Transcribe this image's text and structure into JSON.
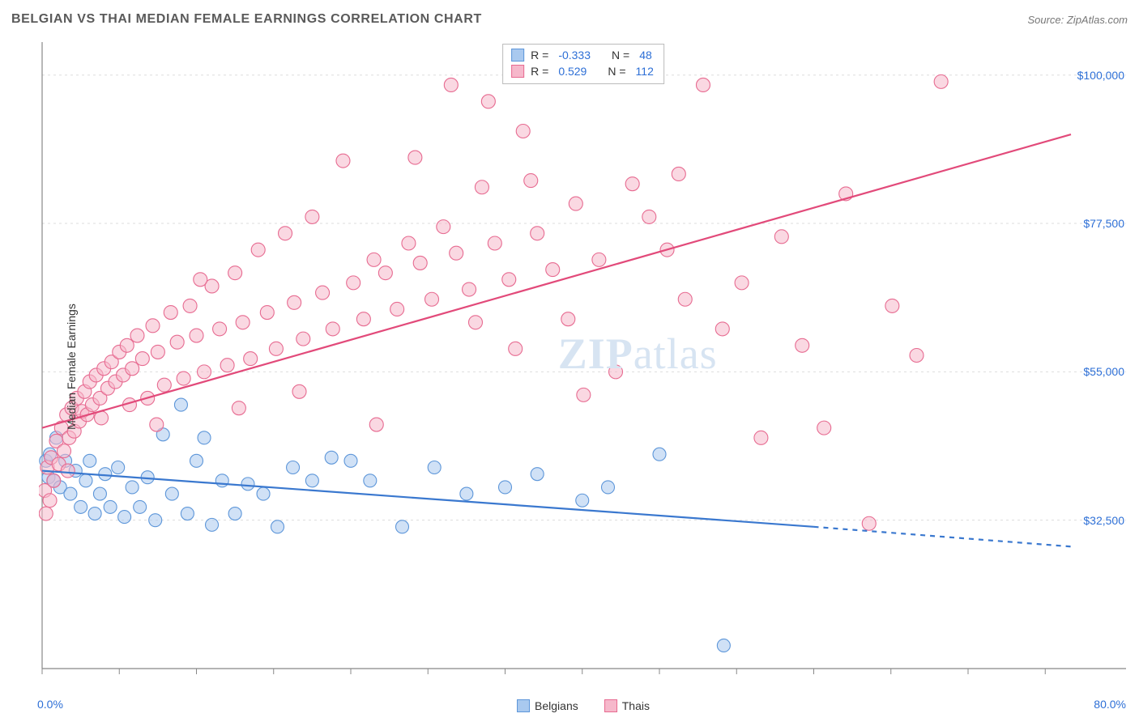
{
  "header": {
    "title": "BELGIAN VS THAI MEDIAN FEMALE EARNINGS CORRELATION CHART",
    "source": "Source: ZipAtlas.com"
  },
  "watermark": {
    "bold": "ZIP",
    "rest": "atlas"
  },
  "chart": {
    "type": "scatter",
    "ylabel": "Median Female Earnings",
    "background_color": "#ffffff",
    "grid_color": "#dddddd",
    "axis_color": "#888888",
    "xlim": [
      0,
      80
    ],
    "ylim": [
      10000,
      105000
    ],
    "x_axis": {
      "start_label": "0.0%",
      "end_label": "80.0%",
      "tick_positions": [
        0,
        6,
        12,
        18,
        24,
        30,
        36,
        42,
        48,
        54,
        60,
        66,
        72,
        78
      ]
    },
    "y_axis": {
      "ticks": [
        {
          "v": 32500,
          "label": "$32,500"
        },
        {
          "v": 55000,
          "label": "$55,000"
        },
        {
          "v": 77500,
          "label": "$77,500"
        },
        {
          "v": 100000,
          "label": "$100,000"
        }
      ]
    },
    "series": [
      {
        "id": "belgians",
        "legend_label": "Belgians",
        "marker": "circle",
        "marker_radius": 8,
        "fill_color": "#a9c9ef",
        "fill_opacity": 0.55,
        "stroke_color": "#5d96d9",
        "line_color": "#3a78cf",
        "line_width": 2.2,
        "stats": {
          "R": "-0.333",
          "N": "48"
        },
        "trend": {
          "x1": 0,
          "y1": 40000,
          "x2": 60,
          "y2": 31500,
          "solid_until_x": 60,
          "dash_to_x": 80,
          "dash_y2": 28500
        },
        "points": [
          [
            0.3,
            41500
          ],
          [
            0.5,
            39000
          ],
          [
            0.6,
            42500
          ],
          [
            0.9,
            38500
          ],
          [
            1.1,
            45000
          ],
          [
            1.4,
            37500
          ],
          [
            1.8,
            41500
          ],
          [
            2.2,
            36500
          ],
          [
            2.6,
            40000
          ],
          [
            3.0,
            34500
          ],
          [
            3.4,
            38500
          ],
          [
            3.7,
            41500
          ],
          [
            4.1,
            33500
          ],
          [
            4.5,
            36500
          ],
          [
            4.9,
            39500
          ],
          [
            5.3,
            34500
          ],
          [
            5.9,
            40500
          ],
          [
            6.4,
            33000
          ],
          [
            7.0,
            37500
          ],
          [
            7.6,
            34500
          ],
          [
            8.2,
            39000
          ],
          [
            8.8,
            32500
          ],
          [
            9.4,
            45500
          ],
          [
            10.1,
            36500
          ],
          [
            10.8,
            50000
          ],
          [
            11.3,
            33500
          ],
          [
            12.0,
            41500
          ],
          [
            12.6,
            45000
          ],
          [
            13.2,
            31800
          ],
          [
            14.0,
            38500
          ],
          [
            15.0,
            33500
          ],
          [
            16.0,
            38000
          ],
          [
            17.2,
            36500
          ],
          [
            18.3,
            31500
          ],
          [
            19.5,
            40500
          ],
          [
            21.0,
            38500
          ],
          [
            22.5,
            42000
          ],
          [
            24.0,
            41500
          ],
          [
            25.5,
            38500
          ],
          [
            28.0,
            31500
          ],
          [
            30.5,
            40500
          ],
          [
            33.0,
            36500
          ],
          [
            36.0,
            37500
          ],
          [
            38.5,
            39500
          ],
          [
            42.0,
            35500
          ],
          [
            44.0,
            37500
          ],
          [
            48.0,
            42500
          ],
          [
            53.0,
            13500
          ]
        ]
      },
      {
        "id": "thais",
        "legend_label": "Thais",
        "marker": "circle",
        "marker_radius": 8.5,
        "fill_color": "#f6b8cb",
        "fill_opacity": 0.55,
        "stroke_color": "#e76b91",
        "line_color": "#e24a7a",
        "line_width": 2.2,
        "stats": {
          "R": "0.529",
          "N": "112"
        },
        "trend": {
          "x1": 0,
          "y1": 46500,
          "x2": 80,
          "y2": 91000,
          "solid_until_x": 80
        },
        "points": [
          [
            0.2,
            37000
          ],
          [
            0.3,
            33500
          ],
          [
            0.4,
            40500
          ],
          [
            0.6,
            35500
          ],
          [
            0.7,
            42000
          ],
          [
            0.9,
            38500
          ],
          [
            1.1,
            44500
          ],
          [
            1.3,
            41000
          ],
          [
            1.5,
            46500
          ],
          [
            1.7,
            43000
          ],
          [
            1.9,
            48500
          ],
          [
            2.1,
            45000
          ],
          [
            2.3,
            49500
          ],
          [
            2.5,
            46000
          ],
          [
            2.7,
            51000
          ],
          [
            2.9,
            47500
          ],
          [
            3.1,
            49000
          ],
          [
            3.3,
            52000
          ],
          [
            3.5,
            48500
          ],
          [
            3.7,
            53500
          ],
          [
            3.9,
            50000
          ],
          [
            4.2,
            54500
          ],
          [
            4.5,
            51000
          ],
          [
            4.8,
            55500
          ],
          [
            5.1,
            52500
          ],
          [
            5.4,
            56500
          ],
          [
            5.7,
            53500
          ],
          [
            6.0,
            58000
          ],
          [
            6.3,
            54500
          ],
          [
            6.6,
            59000
          ],
          [
            7.0,
            55500
          ],
          [
            7.4,
            60500
          ],
          [
            7.8,
            57000
          ],
          [
            8.2,
            51000
          ],
          [
            8.6,
            62000
          ],
          [
            9.0,
            58000
          ],
          [
            9.5,
            53000
          ],
          [
            10.0,
            64000
          ],
          [
            10.5,
            59500
          ],
          [
            11.0,
            54000
          ],
          [
            11.5,
            65000
          ],
          [
            12.0,
            60500
          ],
          [
            12.6,
            55000
          ],
          [
            13.2,
            68000
          ],
          [
            13.8,
            61500
          ],
          [
            14.4,
            56000
          ],
          [
            15.0,
            70000
          ],
          [
            15.6,
            62500
          ],
          [
            16.2,
            57000
          ],
          [
            16.8,
            73500
          ],
          [
            17.5,
            64000
          ],
          [
            18.2,
            58500
          ],
          [
            18.9,
            76000
          ],
          [
            19.6,
            65500
          ],
          [
            20.3,
            60000
          ],
          [
            21.0,
            78500
          ],
          [
            21.8,
            67000
          ],
          [
            22.6,
            61500
          ],
          [
            23.4,
            87000
          ],
          [
            24.2,
            68500
          ],
          [
            25.0,
            63000
          ],
          [
            25.8,
            72000
          ],
          [
            26.7,
            70000
          ],
          [
            27.6,
            64500
          ],
          [
            28.5,
            74500
          ],
          [
            29.4,
            71500
          ],
          [
            30.3,
            66000
          ],
          [
            31.2,
            77000
          ],
          [
            32.2,
            73000
          ],
          [
            33.2,
            67500
          ],
          [
            34.2,
            83000
          ],
          [
            35.2,
            74500
          ],
          [
            36.3,
            69000
          ],
          [
            37.4,
            91500
          ],
          [
            38.5,
            76000
          ],
          [
            39.7,
            70500
          ],
          [
            40.9,
            63000
          ],
          [
            42.1,
            51500
          ],
          [
            43.3,
            72000
          ],
          [
            44.6,
            55000
          ],
          [
            45.9,
            83500
          ],
          [
            47.2,
            78500
          ],
          [
            48.6,
            73500
          ],
          [
            50.0,
            66000
          ],
          [
            51.4,
            98500
          ],
          [
            52.9,
            61500
          ],
          [
            54.4,
            68500
          ],
          [
            55.9,
            45000
          ],
          [
            57.5,
            75500
          ],
          [
            59.1,
            59000
          ],
          [
            60.8,
            46500
          ],
          [
            62.5,
            82000
          ],
          [
            64.3,
            32000
          ],
          [
            66.1,
            65000
          ],
          [
            68.0,
            57500
          ],
          [
            69.9,
            99000
          ],
          [
            49.5,
            85000
          ],
          [
            38.0,
            84000
          ],
          [
            34.7,
            96000
          ],
          [
            31.8,
            98500
          ],
          [
            20.0,
            52000
          ],
          [
            26.0,
            47000
          ],
          [
            29.0,
            87500
          ],
          [
            33.7,
            62500
          ],
          [
            36.8,
            58500
          ],
          [
            41.5,
            80500
          ],
          [
            15.3,
            49500
          ],
          [
            12.3,
            69000
          ],
          [
            8.9,
            47000
          ],
          [
            6.8,
            50000
          ],
          [
            4.6,
            48000
          ],
          [
            2.0,
            40000
          ]
        ]
      }
    ],
    "legend_bottom": [
      {
        "label": "Belgians",
        "fill": "#a9c9ef",
        "stroke": "#5d96d9"
      },
      {
        "label": "Thais",
        "fill": "#f6b8cb",
        "stroke": "#e76b91"
      }
    ]
  },
  "label_text": {
    "R": "R =",
    "N": "N ="
  }
}
